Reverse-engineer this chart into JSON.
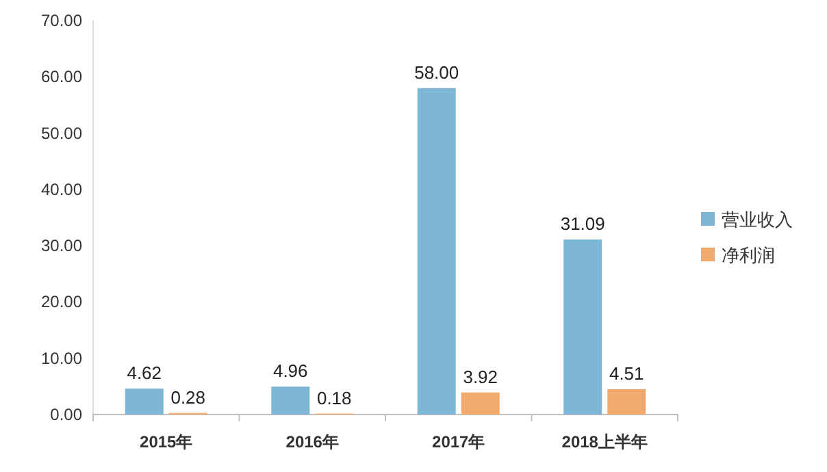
{
  "chart_data": {
    "type": "bar",
    "categories": [
      "2015年",
      "2016年",
      "2017年",
      "2018上半年"
    ],
    "series": [
      {
        "name": "营业收入",
        "color": "#7eb7d6",
        "values": [
          4.62,
          4.96,
          58.0,
          31.09
        ],
        "value_labels": [
          "4.62",
          "4.96",
          "58.00",
          "31.09"
        ]
      },
      {
        "name": "净利润",
        "color": "#f2a96d",
        "values": [
          0.28,
          0.18,
          3.92,
          4.51
        ],
        "value_labels": [
          "0.28",
          "0.18",
          "3.92",
          "4.51"
        ]
      }
    ],
    "ylim": [
      0,
      70
    ],
    "yticks": [
      {
        "value": 0,
        "label": "0.00"
      },
      {
        "value": 10,
        "label": "10.00"
      },
      {
        "value": 20,
        "label": "20.00"
      },
      {
        "value": 30,
        "label": "30.00"
      },
      {
        "value": 40,
        "label": "40.00"
      },
      {
        "value": 50,
        "label": "50.00"
      },
      {
        "value": 60,
        "label": "60.00"
      },
      {
        "value": 70,
        "label": "70.00"
      }
    ],
    "grid": false,
    "legend": "right"
  }
}
